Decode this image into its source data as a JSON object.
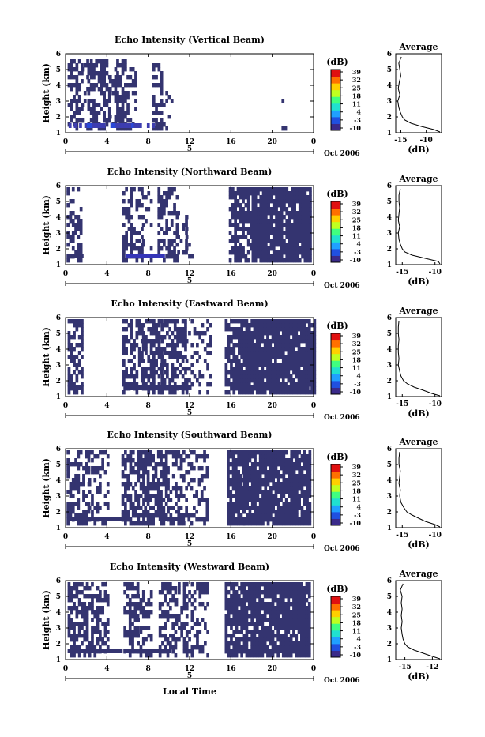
{
  "figure": {
    "xlabel": "Local Time",
    "date_label": "Oct 2006",
    "date_day": "5",
    "x_ticks": [
      "0",
      "4",
      "8",
      "12",
      "16",
      "20",
      "0"
    ],
    "y_ticks": [
      "1",
      "2",
      "3",
      "4",
      "5",
      "6"
    ],
    "ylabel": "Height (km)",
    "colorbar_unit": "(dB)",
    "colorbar_ticks": [
      "39",
      "32",
      "25",
      "18",
      "11",
      "4",
      "-3",
      "-10"
    ],
    "avg_title": "Average",
    "avg_xlabel": "(dB)"
  },
  "chart_data": [
    {
      "type": "heatmap",
      "title": "Echo Intensity (Vertical Beam)",
      "xlim_hours": [
        0,
        24
      ],
      "ylim_km": [
        1,
        6
      ],
      "zlim_db": [
        -10,
        39
      ],
      "colorbar": [
        "#3a2a8a",
        "#2050e0",
        "#20a0ff",
        "#20e0d0",
        "#40ff80",
        "#c0ff20",
        "#ffd000",
        "#ff7000",
        "#e01010"
      ],
      "coverage_note": "dense echoes 0-10 h, isolated points near 21 h",
      "average_profile": {
        "title": "Average",
        "xlabel": "(dB)",
        "xticks": [
          "-15",
          "-10"
        ],
        "xlim": [
          -16,
          -7
        ],
        "height_km": [
          1.2,
          1.4,
          1.6,
          1.8,
          2.0,
          2.3,
          2.6,
          3.0,
          3.4,
          3.8,
          4.2,
          4.6,
          5.0,
          5.4,
          5.8
        ],
        "db": [
          -8.5,
          -11.0,
          -13.0,
          -14.2,
          -14.7,
          -15.1,
          -15.4,
          -15.6,
          -15.2,
          -15.5,
          -15.3,
          -15.0,
          -15.2,
          -15.4,
          -14.9
        ]
      }
    },
    {
      "type": "heatmap",
      "title": "Echo Intensity (Northward Beam)",
      "xlim_hours": [
        0,
        24
      ],
      "ylim_km": [
        1,
        6
      ],
      "zlim_db": [
        -10,
        39
      ],
      "coverage_note": "sparse 0-2 h, 6-11 h, dense 16-23.5 h",
      "average_profile": {
        "title": "Average",
        "xlabel": "(dB)",
        "xticks": [
          "-15",
          "-10"
        ],
        "xlim": [
          -16,
          -9
        ],
        "height_km": [
          1.2,
          1.4,
          1.6,
          1.8,
          2.0,
          2.3,
          2.6,
          3.0,
          3.4,
          3.8,
          4.2,
          4.6,
          5.0,
          5.4,
          5.8
        ],
        "db": [
          -9.5,
          -11.5,
          -13.5,
          -14.6,
          -15.0,
          -15.3,
          -15.5,
          -15.6,
          -15.4,
          -15.6,
          -15.5,
          -15.4,
          -15.5,
          -15.5,
          -15.3
        ]
      }
    },
    {
      "type": "heatmap",
      "title": "Echo Intensity (Eastward Beam)",
      "xlim_hours": [
        0,
        24
      ],
      "ylim_km": [
        1,
        6
      ],
      "zlim_db": [
        -10,
        39
      ],
      "coverage_note": "0-2 h, 5.5-14 h, dense 15.5-24 h",
      "average_profile": {
        "title": "Average",
        "xlabel": "(dB)",
        "xticks": [
          "-15",
          "-10"
        ],
        "xlim": [
          -16,
          -9
        ],
        "height_km": [
          1.2,
          1.4,
          1.6,
          1.8,
          2.0,
          2.3,
          2.6,
          3.0,
          3.4,
          3.8,
          4.2,
          4.6,
          5.0,
          5.4,
          5.8
        ],
        "db": [
          -10.5,
          -11.8,
          -13.2,
          -14.2,
          -14.8,
          -15.2,
          -15.4,
          -15.6,
          -15.5,
          -15.6,
          -15.6,
          -15.5,
          -15.6,
          -15.6,
          -15.5
        ]
      }
    },
    {
      "type": "heatmap",
      "title": "Echo Intensity (Southward Beam)",
      "xlim_hours": [
        0,
        24
      ],
      "ylim_km": [
        1,
        6
      ],
      "zlim_db": [
        -10,
        39
      ],
      "coverage_note": "0-4 h, 5-14 h, dense 15.5-23.5 h",
      "average_profile": {
        "title": "Average",
        "xlabel": "(dB)",
        "xticks": [
          "-15",
          "-10"
        ],
        "xlim": [
          -16,
          -9
        ],
        "height_km": [
          1.2,
          1.4,
          1.6,
          1.8,
          2.0,
          2.3,
          2.6,
          3.0,
          3.4,
          3.8,
          4.2,
          4.6,
          5.0,
          5.4,
          5.8
        ],
        "db": [
          -10.0,
          -11.5,
          -12.5,
          -13.5,
          -14.3,
          -14.8,
          -15.2,
          -15.4,
          -15.3,
          -15.5,
          -15.4,
          -15.3,
          -15.5,
          -15.5,
          -15.4
        ]
      }
    },
    {
      "type": "heatmap",
      "title": "Echo Intensity (Westward Beam)",
      "xlim_hours": [
        0,
        24
      ],
      "ylim_km": [
        1,
        6
      ],
      "zlim_db": [
        -10,
        39
      ],
      "coverage_note": "0-4 h, 5.5-14 h, dense 15.5-23.5 h",
      "average_profile": {
        "title": "Average",
        "xlabel": "(dB)",
        "xticks": [
          "-15",
          "-12"
        ],
        "xlim": [
          -16,
          -11
        ],
        "height_km": [
          1.2,
          1.4,
          1.6,
          1.8,
          2.0,
          2.3,
          2.6,
          3.0,
          3.4,
          3.8,
          4.2,
          4.6,
          5.0,
          5.4,
          5.8
        ],
        "db": [
          -12.0,
          -13.0,
          -14.0,
          -14.7,
          -15.0,
          -15.2,
          -15.3,
          -15.4,
          -15.3,
          -15.4,
          -15.3,
          -15.4,
          -15.3,
          -15.5,
          -15.2
        ]
      }
    }
  ]
}
